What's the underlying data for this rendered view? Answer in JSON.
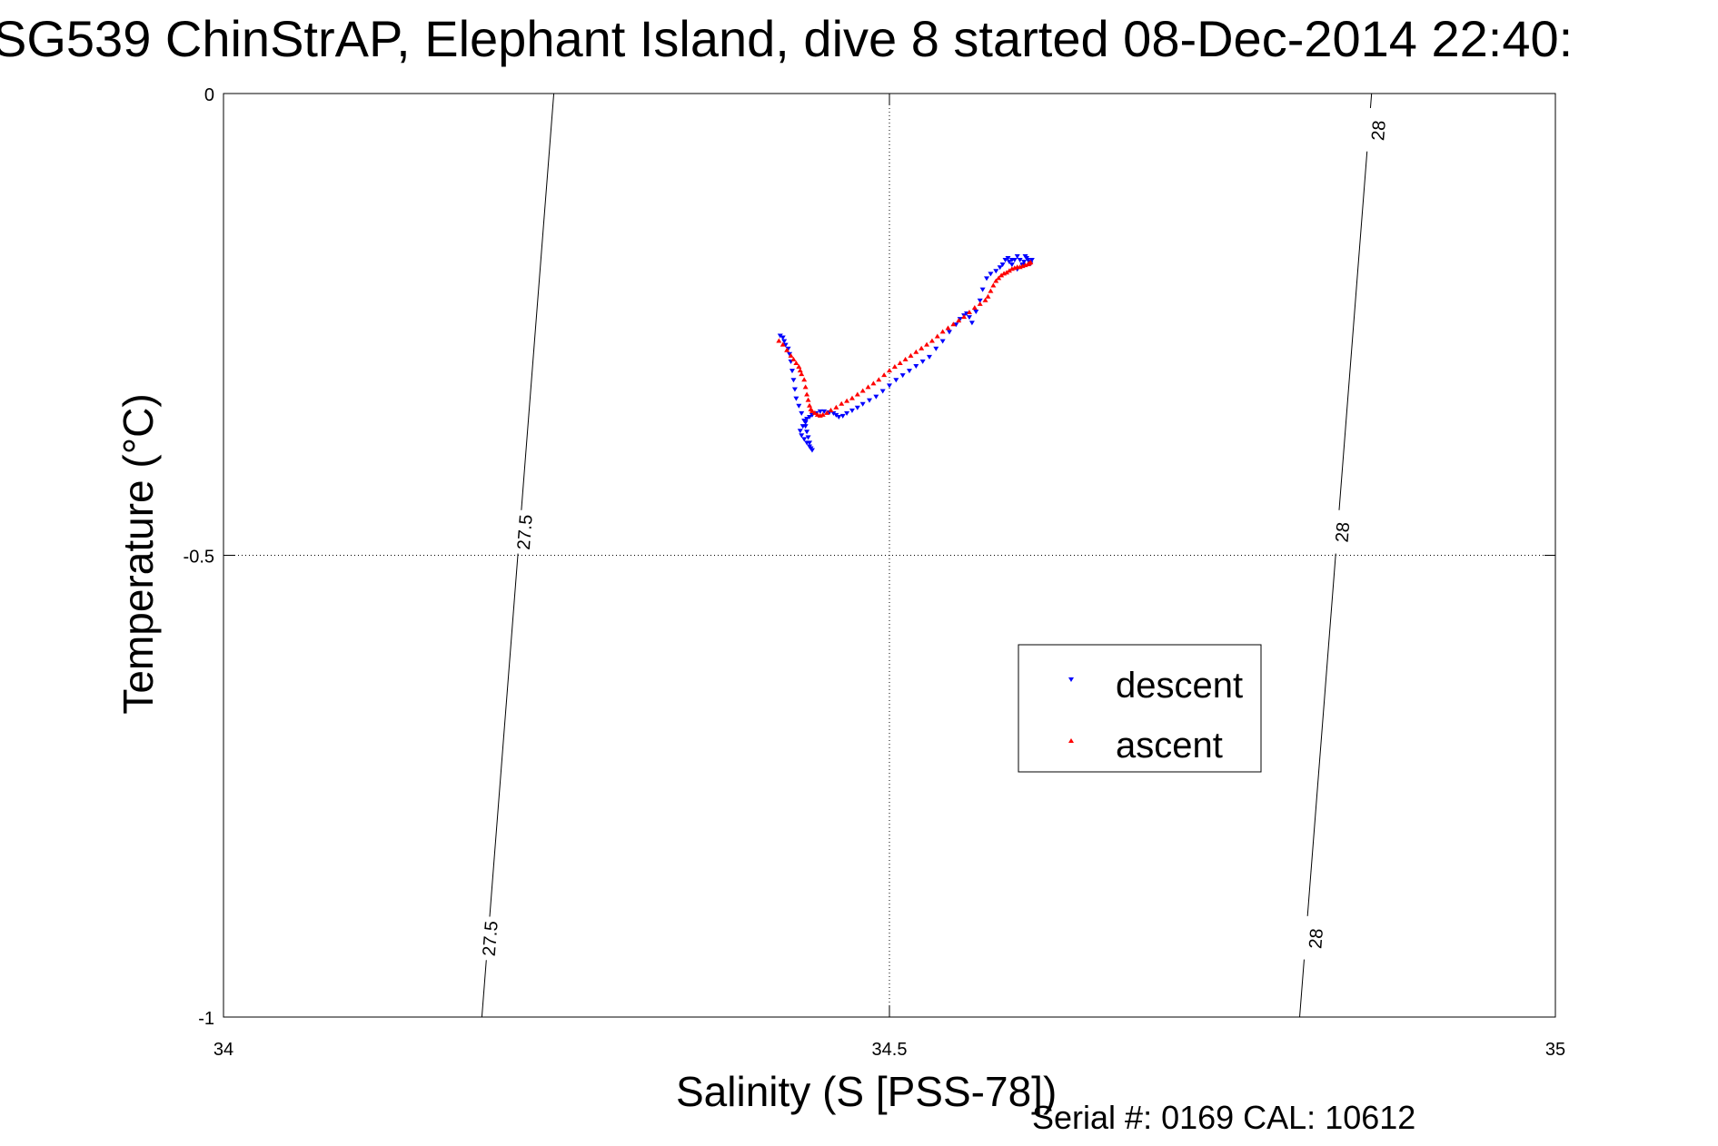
{
  "chart_data": {
    "type": "scatter",
    "title": "SG539 ChinStrAP, Elephant Island, dive 8 started 08-Dec-2014 22:40:",
    "xlabel": "Salinity (S [PSS-78])",
    "ylabel": "Temperature (°C)",
    "xlim": [
      34,
      35
    ],
    "ylim": [
      -1,
      0
    ],
    "xticks": [
      34,
      34.5,
      35
    ],
    "xtick_labels": [
      "34",
      "34.5",
      "35"
    ],
    "yticks": [
      0,
      -0.5,
      -1
    ],
    "ytick_labels": [
      "0",
      "-0.5",
      "-1"
    ],
    "grid": true,
    "legend_position": "lower-right",
    "annotation": "Serial #: 0169 CAL: 10612",
    "contours": [
      {
        "label": "27.5",
        "points": [
          [
            34.248,
            0
          ],
          [
            34.194,
            -1
          ]
        ],
        "label_positions": [
          [
            34.226,
            -0.475
          ],
          [
            34.2,
            -0.915
          ]
        ]
      },
      {
        "label": "28",
        "points": [
          [
            34.862,
            0
          ],
          [
            34.808,
            -1
          ]
        ],
        "label_positions": [
          [
            34.867,
            -0.04
          ],
          [
            34.84,
            -0.475
          ],
          [
            34.82,
            -0.915
          ]
        ]
      }
    ],
    "series": [
      {
        "name": "descent",
        "color": "#0000ff",
        "marker": "triangle-down",
        "x": [
          34.418,
          34.42,
          34.421,
          34.422,
          34.424,
          34.425,
          34.426,
          34.427,
          34.428,
          34.429,
          34.43,
          34.432,
          34.434,
          34.436,
          34.437,
          34.438,
          34.439,
          34.44,
          34.441,
          34.442,
          34.44,
          34.438,
          34.436,
          34.434,
          34.433,
          34.435,
          34.437,
          34.438,
          34.44,
          34.442,
          34.445,
          34.448,
          34.451,
          34.455,
          34.458,
          34.46,
          34.462,
          34.465,
          34.468,
          34.472,
          34.476,
          34.48,
          34.485,
          34.49,
          34.495,
          34.5,
          34.505,
          34.51,
          34.515,
          34.52,
          34.525,
          34.53,
          34.535,
          34.54,
          34.545,
          34.55,
          34.553,
          34.556,
          34.558,
          34.56,
          34.562,
          34.565,
          34.568,
          34.57,
          34.573,
          34.576,
          34.58,
          34.583,
          34.585,
          34.587,
          34.589,
          34.59,
          34.592,
          34.594,
          34.596,
          34.598,
          34.6,
          34.601,
          34.602,
          34.603,
          34.604,
          34.605,
          34.606,
          34.607,
          34.6,
          34.596,
          34.592
        ],
        "y": [
          -0.262,
          -0.264,
          -0.268,
          -0.272,
          -0.276,
          -0.282,
          -0.29,
          -0.3,
          -0.31,
          -0.32,
          -0.33,
          -0.338,
          -0.346,
          -0.354,
          -0.36,
          -0.366,
          -0.372,
          -0.378,
          -0.384,
          -0.386,
          -0.382,
          -0.378,
          -0.374,
          -0.37,
          -0.365,
          -0.36,
          -0.356,
          -0.352,
          -0.35,
          -0.348,
          -0.346,
          -0.344,
          -0.344,
          -0.345,
          -0.346,
          -0.348,
          -0.35,
          -0.349,
          -0.346,
          -0.343,
          -0.34,
          -0.336,
          -0.332,
          -0.328,
          -0.322,
          -0.316,
          -0.31,
          -0.305,
          -0.3,
          -0.295,
          -0.29,
          -0.285,
          -0.276,
          -0.268,
          -0.258,
          -0.25,
          -0.244,
          -0.24,
          -0.238,
          -0.242,
          -0.248,
          -0.236,
          -0.224,
          -0.212,
          -0.2,
          -0.195,
          -0.192,
          -0.188,
          -0.185,
          -0.18,
          -0.178,
          -0.182,
          -0.185,
          -0.18,
          -0.176,
          -0.18,
          -0.185,
          -0.182,
          -0.176,
          -0.178,
          -0.18,
          -0.182,
          -0.184,
          -0.18,
          -0.186,
          -0.19,
          -0.18
        ]
      },
      {
        "name": "ascent",
        "color": "#ff0000",
        "marker": "triangle-up",
        "x": [
          34.417,
          34.42,
          34.423,
          34.426,
          34.428,
          34.43,
          34.432,
          34.433,
          34.434,
          34.436,
          34.437,
          34.438,
          34.439,
          34.44,
          34.441,
          34.442,
          34.444,
          34.446,
          34.448,
          34.45,
          34.453,
          34.456,
          34.46,
          34.464,
          34.468,
          34.472,
          34.476,
          34.48,
          34.484,
          34.488,
          34.492,
          34.496,
          34.5,
          34.504,
          34.508,
          34.512,
          34.516,
          34.52,
          34.524,
          34.528,
          34.532,
          34.536,
          34.54,
          34.544,
          34.548,
          34.552,
          34.556,
          34.56,
          34.564,
          34.568,
          34.572,
          34.574,
          34.576,
          34.578,
          34.58,
          34.582,
          34.584,
          34.586,
          34.588,
          34.59,
          34.592,
          34.594,
          34.596,
          34.598,
          34.6,
          34.602,
          34.604,
          34.605,
          34.606
        ],
        "y": [
          -0.268,
          -0.272,
          -0.278,
          -0.284,
          -0.288,
          -0.292,
          -0.296,
          -0.3,
          -0.304,
          -0.31,
          -0.318,
          -0.326,
          -0.332,
          -0.338,
          -0.342,
          -0.344,
          -0.346,
          -0.348,
          -0.349,
          -0.348,
          -0.346,
          -0.343,
          -0.34,
          -0.336,
          -0.333,
          -0.33,
          -0.326,
          -0.322,
          -0.318,
          -0.314,
          -0.31,
          -0.305,
          -0.3,
          -0.296,
          -0.292,
          -0.288,
          -0.284,
          -0.28,
          -0.276,
          -0.272,
          -0.268,
          -0.263,
          -0.258,
          -0.254,
          -0.25,
          -0.246,
          -0.242,
          -0.237,
          -0.232,
          -0.228,
          -0.224,
          -0.22,
          -0.214,
          -0.208,
          -0.203,
          -0.2,
          -0.197,
          -0.195,
          -0.194,
          -0.192,
          -0.19,
          -0.189,
          -0.188,
          -0.188,
          -0.187,
          -0.186,
          -0.185,
          -0.184,
          -0.183
        ]
      }
    ]
  }
}
